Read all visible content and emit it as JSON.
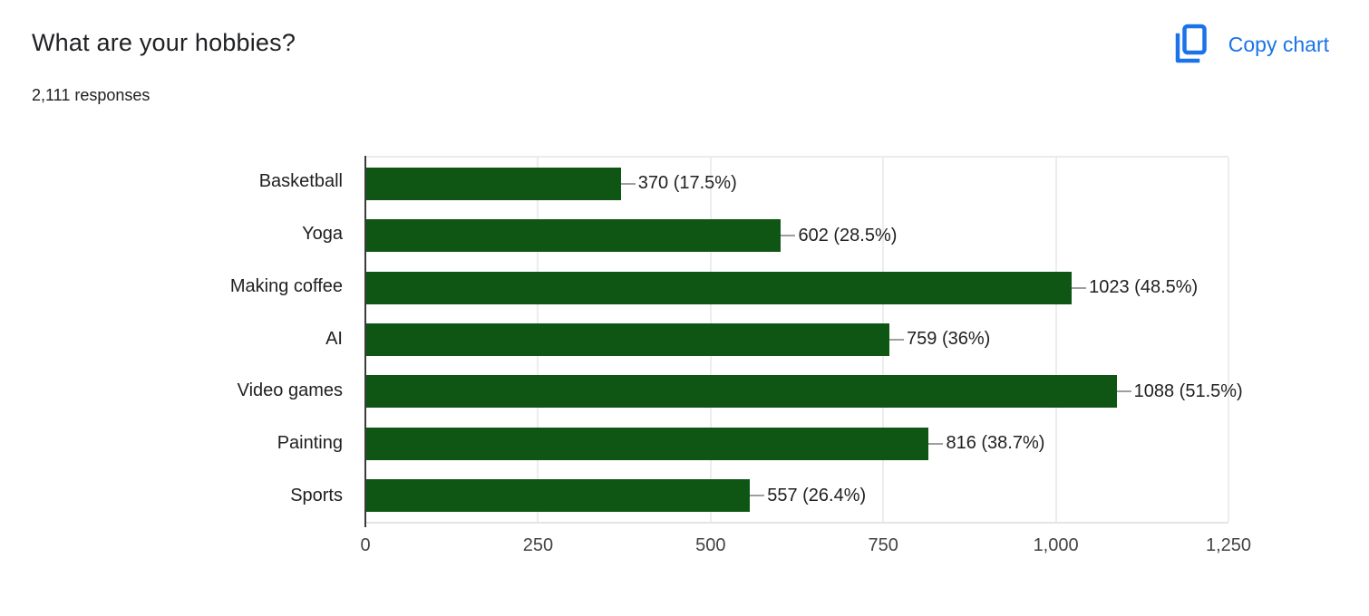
{
  "header": {
    "title": "What are your hobbies?",
    "subtitle": "2,111 responses",
    "copy_chart_label": "Copy chart"
  },
  "colors": {
    "bar_green": "#0f5614",
    "accent_blue": "#1a73e8",
    "gridline": "#ededed",
    "axis_line": "#3b3b3b",
    "leader_line": "#9e9e9e",
    "text": "#212121"
  },
  "chart_data": {
    "type": "bar",
    "orientation": "horizontal",
    "title": "What are your hobbies?",
    "subtitle": "2,111 responses",
    "categories": [
      "Basketball",
      "Yoga",
      "Making coffee",
      "AI",
      "Video games",
      "Painting",
      "Sports"
    ],
    "values": [
      370,
      602,
      1023,
      759,
      1088,
      816,
      557
    ],
    "value_labels": [
      "370 (17.5%)",
      "602 (28.5%)",
      "1023 (48.5%)",
      "759 (36%)",
      "1088 (51.5%)",
      "816 (38.7%)",
      "557 (26.4%)"
    ],
    "xlim": [
      0,
      1250
    ],
    "x_ticks": [
      0,
      250,
      500,
      750,
      1000,
      1250
    ],
    "x_tick_labels": [
      "0",
      "250",
      "500",
      "750",
      "1,000",
      "1,250"
    ],
    "grid": true,
    "legend": "none"
  }
}
